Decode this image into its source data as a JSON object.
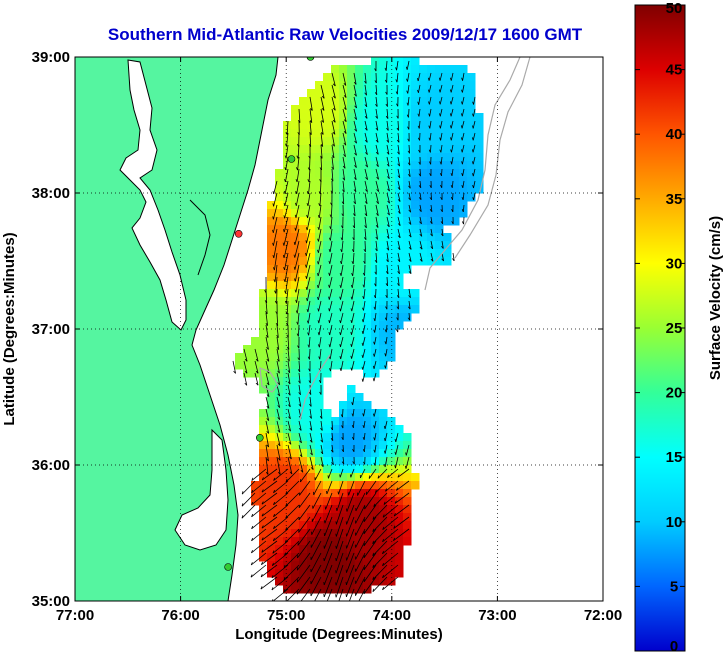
{
  "chart_data": {
    "type": "heatmap",
    "title": "Southern Mid-Atlantic Raw Velocities 2009/12/17 1600 GMT",
    "xlabel": "Longitude (Degrees:Minutes)",
    "ylabel": "Latitude (Degrees:Minutes)",
    "xlim": [
      -77,
      -72
    ],
    "ylim": [
      35,
      39
    ],
    "x_ticks": [
      {
        "value": -77,
        "label": "77:00"
      },
      {
        "value": -76,
        "label": "76:00"
      },
      {
        "value": -75,
        "label": "75:00"
      },
      {
        "value": -74,
        "label": "74:00"
      },
      {
        "value": -73,
        "label": "73:00"
      },
      {
        "value": -72,
        "label": "72:00"
      }
    ],
    "y_ticks": [
      {
        "value": 35,
        "label": "35:00"
      },
      {
        "value": 36,
        "label": "36:00"
      },
      {
        "value": 37,
        "label": "37:00"
      },
      {
        "value": 38,
        "label": "38:00"
      },
      {
        "value": 39,
        "label": "39:00"
      }
    ],
    "grid": true,
    "colorbar": {
      "label": "Surface Velocity (cm/s)",
      "range": [
        0,
        50
      ],
      "ticks": [
        {
          "value": 0,
          "label": "0"
        },
        {
          "value": 5,
          "label": "5"
        },
        {
          "value": 10,
          "label": "10"
        },
        {
          "value": 15,
          "label": "15"
        },
        {
          "value": 20,
          "label": "20"
        },
        {
          "value": 25,
          "label": "25"
        },
        {
          "value": 30,
          "label": "30"
        },
        {
          "value": 35,
          "label": "35"
        },
        {
          "value": 40,
          "label": "40"
        },
        {
          "value": 45,
          "label": "45"
        },
        {
          "value": 50,
          "label": "50"
        }
      ],
      "colormap": [
        "#0000cc",
        "#0066ff",
        "#00ccff",
        "#00ffff",
        "#33ff99",
        "#99ff33",
        "#ffff00",
        "#ffaa00",
        "#ff5500",
        "#dd0000",
        "#800000"
      ]
    },
    "speed_field": [
      {
        "lon": -74.7,
        "lat": 38.6,
        "speed": 28
      },
      {
        "lon": -74.1,
        "lat": 38.5,
        "speed": 16
      },
      {
        "lon": -73.6,
        "lat": 38.5,
        "speed": 10
      },
      {
        "lon": -74.8,
        "lat": 38.0,
        "speed": 26
      },
      {
        "lon": -74.3,
        "lat": 38.0,
        "speed": 20
      },
      {
        "lon": -73.6,
        "lat": 38.0,
        "speed": 8
      },
      {
        "lon": -75.0,
        "lat": 37.6,
        "speed": 38
      },
      {
        "lon": -74.5,
        "lat": 37.5,
        "speed": 20
      },
      {
        "lon": -73.9,
        "lat": 37.4,
        "speed": 14
      },
      {
        "lon": -75.2,
        "lat": 37.0,
        "speed": 25
      },
      {
        "lon": -74.6,
        "lat": 37.0,
        "speed": 18
      },
      {
        "lon": -73.9,
        "lat": 37.0,
        "speed": 9
      },
      {
        "lon": -74.7,
        "lat": 36.4,
        "speed": 16
      },
      {
        "lon": -74.4,
        "lat": 36.2,
        "speed": 8
      },
      {
        "lon": -75.0,
        "lat": 35.8,
        "speed": 42
      },
      {
        "lon": -74.3,
        "lat": 35.6,
        "speed": 48
      },
      {
        "lon": -74.6,
        "lat": 35.3,
        "speed": 50
      }
    ]
  },
  "colors": {
    "land": "#55f5a0",
    "coastline": "#000000",
    "bathymetry": "#aaaaaa",
    "title": "#0000cc"
  },
  "stations": [
    {
      "lon": -74.77,
      "lat": 39.0,
      "color": "#33cc33"
    },
    {
      "lon": -74.95,
      "lat": 38.25,
      "color": "#33cc33"
    },
    {
      "lon": -75.45,
      "lat": 37.7,
      "color": "#ff3333"
    },
    {
      "lon": -75.25,
      "lat": 36.2,
      "color": "#33cc33"
    },
    {
      "lon": -75.55,
      "lat": 35.25,
      "color": "#33cc33"
    }
  ]
}
